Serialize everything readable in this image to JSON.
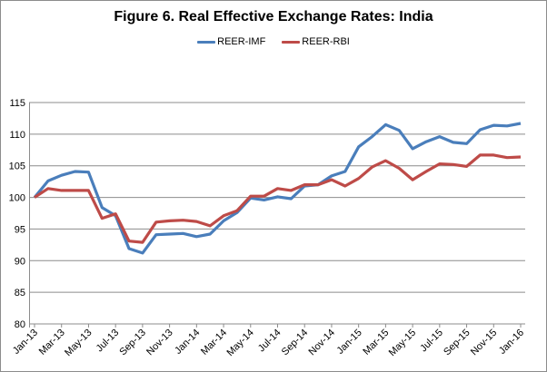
{
  "chart_data": {
    "type": "line",
    "title": "Figure 6. Real Effective Exchange Rates: India",
    "xlabel": "",
    "ylabel": "",
    "ylim": [
      80,
      115
    ],
    "yticks": [
      80,
      85,
      90,
      95,
      100,
      105,
      110,
      115
    ],
    "grid": true,
    "legend_position": "top",
    "x": [
      "Jan-13",
      "Feb-13",
      "Mar-13",
      "Apr-13",
      "May-13",
      "Jun-13",
      "Jul-13",
      "Aug-13",
      "Sep-13",
      "Oct-13",
      "Nov-13",
      "Dec-13",
      "Jan-14",
      "Feb-14",
      "Mar-14",
      "Apr-14",
      "May-14",
      "Jun-14",
      "Jul-14",
      "Aug-14",
      "Sep-14",
      "Oct-14",
      "Nov-14",
      "Dec-14",
      "Jan-15",
      "Feb-15",
      "Mar-15",
      "Apr-15",
      "May-15",
      "Jun-15",
      "Jul-15",
      "Aug-15",
      "Sep-15",
      "Oct-15",
      "Nov-15",
      "Dec-15",
      "Jan-16"
    ],
    "xtick_labels": [
      "Jan-13",
      "Mar-13",
      "May-13",
      "Jul-13",
      "Sep-13",
      "Nov-13",
      "Jan-14",
      "Mar-14",
      "May-14",
      "Jul-14",
      "Sep-14",
      "Nov-14",
      "Jan-15",
      "Mar-15",
      "May-15",
      "Jul-15",
      "Sep-15",
      "Nov-15",
      "Jan-16"
    ],
    "series": [
      {
        "name": "REER-IMF",
        "color": "#4a7ebb",
        "values": [
          100,
          102.6,
          103.5,
          104.1,
          104.0,
          98.4,
          97.1,
          91.9,
          91.2,
          94.1,
          94.2,
          94.3,
          93.8,
          94.2,
          96.3,
          97.6,
          99.9,
          99.6,
          100.1,
          99.8,
          101.8,
          102.0,
          103.4,
          104.1,
          108.0,
          109.6,
          111.5,
          110.6,
          107.7,
          108.8,
          109.6,
          108.7,
          108.5,
          110.7,
          111.4,
          111.3,
          111.7
        ]
      },
      {
        "name": "REER-RBI",
        "color": "#be4b48",
        "values": [
          100,
          101.4,
          101.1,
          101.1,
          101.1,
          96.7,
          97.4,
          93.1,
          92.9,
          96.1,
          96.3,
          96.4,
          96.2,
          95.5,
          97.1,
          97.9,
          100.2,
          100.2,
          101.4,
          101.1,
          102.0,
          102.0,
          102.8,
          101.8,
          103.0,
          104.8,
          105.8,
          104.6,
          102.8,
          104.1,
          105.3,
          105.2,
          104.9,
          106.7,
          106.7,
          106.3,
          106.4
        ]
      }
    ]
  }
}
